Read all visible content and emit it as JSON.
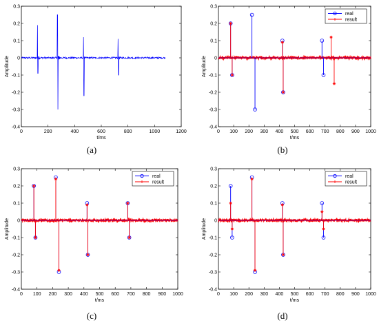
{
  "colors": {
    "real": "#0000ff",
    "result": "#ff0000",
    "axis": "#000000"
  },
  "chart_data": [
    {
      "type": "line",
      "caption": "(a)",
      "xlabel": "t/ms",
      "ylabel": "Amplitude",
      "xlim": [
        0,
        1200
      ],
      "ylim": [
        -0.4,
        0.3
      ],
      "xticks": [
        0,
        200,
        400,
        600,
        800,
        1000,
        1200
      ],
      "yticks": [
        -0.4,
        -0.3,
        -0.2,
        -0.1,
        0,
        0.1,
        0.2,
        0.3
      ],
      "ytick_labels": [
        "-0.4",
        "-0.3",
        "-0.2",
        "-0.1",
        "0",
        "0.1",
        "0.2",
        "0.3"
      ],
      "grid": false,
      "legend": null,
      "series": [
        {
          "color": "#0000ff",
          "noise_amplitude": 0.005,
          "x_range": [
            0,
            1080
          ],
          "pulses": [
            {
              "x": 120,
              "values": [
                0.19,
                -0.09
              ]
            },
            {
              "x": 270,
              "values": [
                0.25,
                -0.3
              ]
            },
            {
              "x": 465,
              "values": [
                0.12,
                -0.22
              ]
            },
            {
              "x": 725,
              "values": [
                0.11,
                -0.1
              ]
            }
          ]
        }
      ]
    },
    {
      "type": "stem",
      "caption": "(b)",
      "xlabel": "t/ms",
      "ylabel": "Amplitude",
      "xlim": [
        0,
        1000
      ],
      "ylim": [
        -0.4,
        0.3
      ],
      "xticks": [
        0,
        100,
        200,
        300,
        400,
        500,
        600,
        700,
        800,
        900,
        1000
      ],
      "yticks": [
        -0.4,
        -0.3,
        -0.2,
        -0.1,
        0,
        0.1,
        0.2,
        0.3
      ],
      "ytick_labels": [
        "-0.4",
        "-0.3",
        "-0.2",
        "-0.1",
        "0",
        "0.1",
        "0.2",
        "0.3"
      ],
      "grid": false,
      "legend": {
        "position": "top-right",
        "entries": [
          "real",
          "result"
        ]
      },
      "series": [
        {
          "name": "real",
          "marker": "o",
          "color": "#0000ff",
          "x": [
            80,
            90,
            220,
            240,
            420,
            425,
            680,
            690
          ],
          "y": [
            0.2,
            -0.1,
            0.25,
            -0.3,
            0.1,
            -0.2,
            0.1,
            -0.1
          ]
        },
        {
          "name": "result",
          "marker": "*",
          "color": "#ff0000",
          "noise_amplitude": 0.006,
          "x": [
            80,
            90,
            420,
            425,
            740,
            760
          ],
          "y": [
            0.2,
            -0.1,
            0.09,
            -0.2,
            0.12,
            -0.15
          ]
        }
      ]
    },
    {
      "type": "stem",
      "caption": "(c)",
      "xlabel": "t/ms",
      "ylabel": "Amplitude",
      "xlim": [
        0,
        1000
      ],
      "ylim": [
        -0.4,
        0.3
      ],
      "xticks": [
        0,
        100,
        200,
        300,
        400,
        500,
        600,
        700,
        800,
        900,
        1000
      ],
      "yticks": [
        -0.4,
        -0.3,
        -0.2,
        -0.1,
        0,
        0.1,
        0.2,
        0.3
      ],
      "ytick_labels": [
        "-0.4",
        "-0.3",
        "-0.2",
        "-0.1",
        "0",
        "0.1",
        "0.2",
        "0.3"
      ],
      "grid": false,
      "legend": {
        "position": "top-right",
        "entries": [
          "real",
          "result"
        ]
      },
      "series": [
        {
          "name": "real",
          "marker": "o",
          "color": "#0000ff",
          "x": [
            80,
            90,
            220,
            240,
            420,
            425,
            680,
            690
          ],
          "y": [
            0.2,
            -0.1,
            0.25,
            -0.3,
            0.1,
            -0.2,
            0.1,
            -0.1
          ]
        },
        {
          "name": "result",
          "marker": "*",
          "color": "#ff0000",
          "noise_amplitude": 0.006,
          "x": [
            80,
            90,
            220,
            240,
            420,
            425,
            680,
            690
          ],
          "y": [
            0.2,
            -0.1,
            0.24,
            -0.29,
            0.09,
            -0.2,
            0.1,
            -0.1
          ]
        }
      ]
    },
    {
      "type": "stem",
      "caption": "(d)",
      "xlabel": "t/ms",
      "ylabel": "Amplitude",
      "xlim": [
        0,
        1000
      ],
      "ylim": [
        -0.4,
        0.3
      ],
      "xticks": [
        0,
        100,
        200,
        300,
        400,
        500,
        600,
        700,
        800,
        900,
        1000
      ],
      "yticks": [
        -0.4,
        -0.3,
        -0.2,
        -0.1,
        0,
        0.1,
        0.2,
        0.3
      ],
      "ytick_labels": [
        "-0.4",
        "-0.3",
        "-0.2",
        "-0.1",
        "0",
        "0.1",
        "0.2",
        "0.3"
      ],
      "grid": false,
      "legend": {
        "position": "top-right",
        "entries": [
          "real",
          "result"
        ]
      },
      "series": [
        {
          "name": "real",
          "marker": "o",
          "color": "#0000ff",
          "x": [
            80,
            90,
            220,
            240,
            420,
            425,
            680,
            690
          ],
          "y": [
            0.2,
            -0.1,
            0.25,
            -0.3,
            0.1,
            -0.2,
            0.1,
            -0.1
          ]
        },
        {
          "name": "result",
          "marker": "*",
          "color": "#ff0000",
          "noise_amplitude": 0.006,
          "x": [
            80,
            90,
            220,
            240,
            420,
            425,
            680,
            690
          ],
          "y": [
            0.1,
            -0.05,
            0.24,
            -0.29,
            0.09,
            -0.2,
            0.05,
            -0.05
          ]
        }
      ]
    }
  ]
}
